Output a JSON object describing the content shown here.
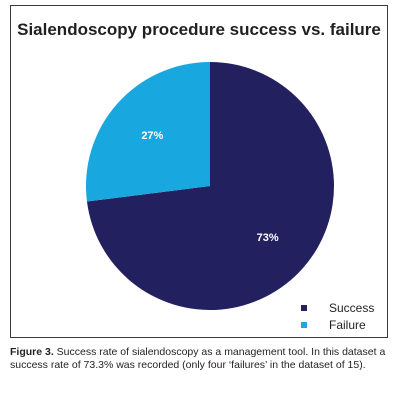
{
  "chart_data": {
    "type": "pie",
    "title": "Sialendoscopy procedure success vs. failure",
    "slices": [
      {
        "label": "Success",
        "value": 73,
        "display": "73%",
        "color": "#23205f"
      },
      {
        "label": "Failure",
        "value": 27,
        "display": "27%",
        "color": "#19a7df"
      }
    ],
    "legend_position": "bottom-right"
  },
  "caption": {
    "label": "Figure 3.",
    "text": " Success rate of sialendoscopy as a management tool. In this dataset a success rate of 73.3% was recorded (only four ‘failures’ in the dataset of 15)."
  }
}
